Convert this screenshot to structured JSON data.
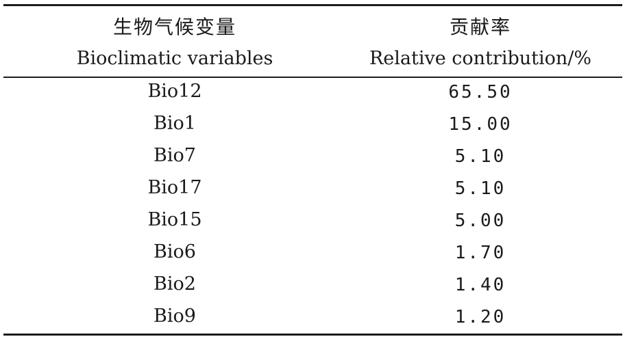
{
  "header": {
    "col1_zh": "生物气候变量",
    "col2_zh": "贡献率",
    "col1_en": "Bioclimatic variables",
    "col2_en": "Relative contribution/%"
  },
  "rows": [
    {
      "variable": "Bio12",
      "contribution": "65.50"
    },
    {
      "variable": "Bio1",
      "contribution": "15.00"
    },
    {
      "variable": "Bio7",
      "contribution": "5.10"
    },
    {
      "variable": "Bio17",
      "contribution": "5.10"
    },
    {
      "variable": "Bio15",
      "contribution": "5.00"
    },
    {
      "variable": "Bio6",
      "contribution": "1.70"
    },
    {
      "variable": "Bio2",
      "contribution": "1.40"
    },
    {
      "variable": "Bio9",
      "contribution": "1.20"
    }
  ]
}
